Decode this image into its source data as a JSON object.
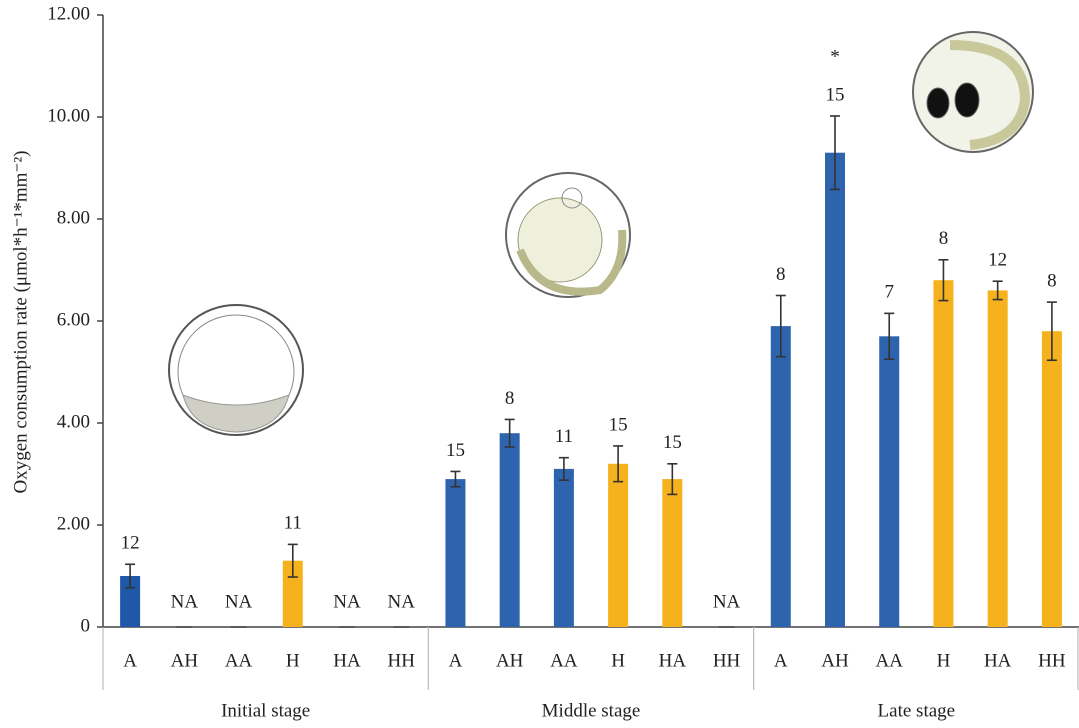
{
  "chart_data": {
    "type": "bar",
    "y_label": "Oxygen consumption rate (μmol*h⁻¹*mm⁻²)",
    "groups": [
      "Initial stage",
      "Middle stage",
      "Late stage"
    ],
    "categories": [
      "A",
      "AH",
      "AA",
      "H",
      "HA",
      "HH",
      "A",
      "AH",
      "AA",
      "H",
      "HA",
      "HH",
      "A",
      "AH",
      "AA",
      "H",
      "HA",
      "HH"
    ],
    "values": [
      1.0,
      null,
      null,
      1.3,
      null,
      null,
      2.9,
      3.8,
      3.1,
      3.2,
      2.9,
      null,
      5.9,
      9.3,
      5.7,
      6.8,
      6.6,
      5.8
    ],
    "errors": [
      0.23,
      null,
      null,
      0.32,
      null,
      null,
      0.15,
      0.27,
      0.22,
      0.35,
      0.3,
      null,
      0.6,
      0.72,
      0.45,
      0.4,
      0.18,
      0.57
    ],
    "n_labels": [
      "12",
      "NA",
      "NA",
      "11",
      "NA",
      "NA",
      "15",
      "8",
      "11",
      "15",
      "15",
      "NA",
      "8",
      "15",
      "7",
      "8",
      "12",
      "8"
    ],
    "significance": [
      null,
      null,
      null,
      null,
      null,
      null,
      null,
      null,
      null,
      null,
      null,
      null,
      null,
      "*",
      null,
      null,
      null,
      null
    ],
    "colors": [
      "#1f58a6",
      "#2e64ad",
      "#2e64ad",
      "#f6b21c",
      "#f6b21c",
      "#f6b21c",
      "#2e64ad",
      "#2e64ad",
      "#2e64ad",
      "#f6b21c",
      "#f6b21c",
      "#f6b21c",
      "#2e64ad",
      "#2e64ad",
      "#2e64ad",
      "#f6b21c",
      "#f6b21c",
      "#f6b21c"
    ],
    "ylim": [
      0,
      12
    ],
    "yticks": [
      0,
      {
        "value": 2,
        "label": "2.00"
      },
      {
        "value": 4,
        "label": "4.00"
      },
      {
        "value": 6,
        "label": "6.00"
      },
      {
        "value": 8,
        "label": "8.00"
      },
      {
        "value": 10,
        "label": "10.00"
      },
      {
        "value": 12,
        "label": "12.00"
      }
    ]
  }
}
